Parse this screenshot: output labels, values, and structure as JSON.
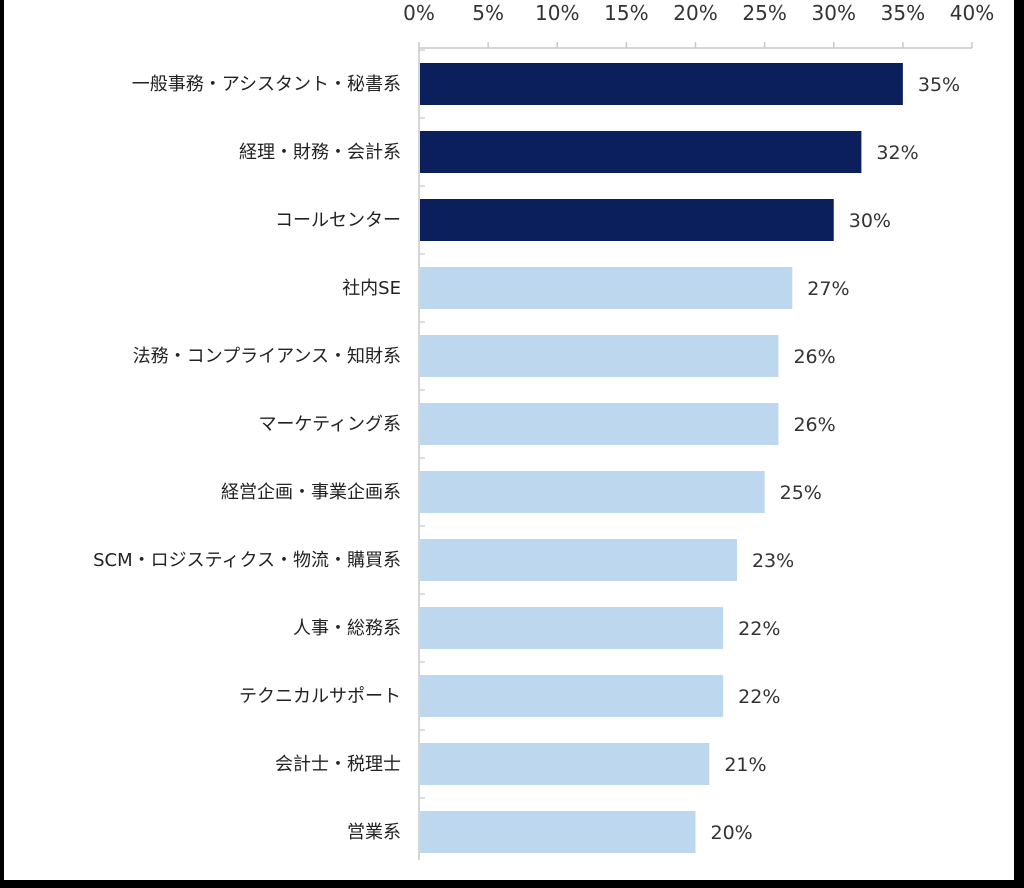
{
  "chart_data": {
    "type": "bar",
    "orientation": "horizontal",
    "title": "",
    "xlabel": "",
    "ylabel": "",
    "xlim": [
      0,
      40
    ],
    "x_ticks": [
      0,
      5,
      10,
      15,
      20,
      25,
      30,
      35,
      40
    ],
    "x_tick_labels": [
      "0%",
      "5%",
      "10%",
      "15%",
      "20%",
      "25%",
      "30%",
      "35%",
      "40%"
    ],
    "x_axis_position": "top",
    "grid": false,
    "legend": "none",
    "categories": [
      "一般事務・アシスタント・秘書系",
      "経理・財務・会計系",
      "コールセンター",
      "社内SE",
      "法務・コンプライアンス・知財系",
      "マーケティング系",
      "経営企画・事業企画系",
      "SCM・ロジスティクス・物流・購買系",
      "人事・総務系",
      "テクニカルサポート",
      "会計士・税理士",
      "営業系"
    ],
    "values": [
      35,
      32,
      30,
      27,
      26,
      26,
      25,
      23,
      22,
      22,
      21,
      20
    ],
    "value_labels": [
      "35%",
      "32%",
      "30%",
      "27%",
      "26%",
      "26%",
      "25%",
      "23%",
      "22%",
      "22%",
      "21%",
      "20%"
    ],
    "highlight_count": 3,
    "colors": {
      "highlight": "#0a1f5c",
      "normal": "#bdd7ee",
      "axis": "#c8c8c8"
    }
  }
}
